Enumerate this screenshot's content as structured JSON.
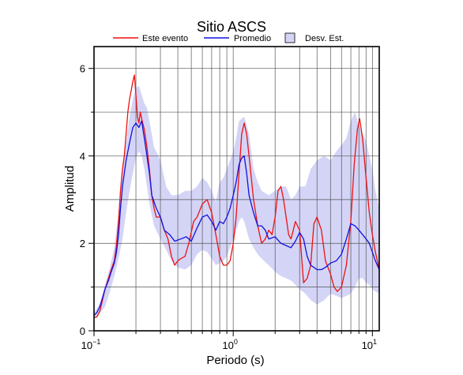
{
  "chart_data": {
    "type": "line",
    "title": "Sitio ASCS",
    "xlabel": "Periodo (s)",
    "ylabel": "Amplitud",
    "xscale": "log",
    "xlim": [
      0.1,
      11.2
    ],
    "ylim": [
      0,
      6.5
    ],
    "grid": "vertical lines at log decades and their multiples; horizontal lines at every 1 unit",
    "legend_placement": "top",
    "xticks": [
      {
        "value": 0.1,
        "base": "10",
        "exp": "−1"
      },
      {
        "value": 1,
        "base": "10",
        "exp": "0"
      },
      {
        "value": 10,
        "base": "10",
        "exp": "1"
      }
    ],
    "yticks": [
      {
        "value": 0,
        "label": "0"
      },
      {
        "value": 2,
        "label": "2"
      },
      {
        "value": 4,
        "label": "4"
      },
      {
        "value": 6,
        "label": "6"
      }
    ],
    "colors": {
      "event": "#ee1111",
      "mean": "#1111dd",
      "band": "#d4d4f7"
    },
    "legend": [
      {
        "key": "event",
        "label": "Este evento"
      },
      {
        "key": "mean",
        "label": "Promedio"
      },
      {
        "key": "band",
        "label": "Desv. Est."
      }
    ],
    "series": [
      {
        "name": "Este evento",
        "key": "event",
        "x": [
          0.1,
          0.105,
          0.11,
          0.115,
          0.12,
          0.127,
          0.133,
          0.14,
          0.145,
          0.15,
          0.155,
          0.16,
          0.165,
          0.17,
          0.175,
          0.18,
          0.185,
          0.19,
          0.195,
          0.2,
          0.205,
          0.21,
          0.215,
          0.22,
          0.23,
          0.24,
          0.25,
          0.26,
          0.27,
          0.28,
          0.3,
          0.32,
          0.34,
          0.36,
          0.38,
          0.4,
          0.42,
          0.45,
          0.48,
          0.52,
          0.55,
          0.6,
          0.65,
          0.7,
          0.75,
          0.8,
          0.85,
          0.9,
          0.95,
          1.0,
          1.05,
          1.1,
          1.15,
          1.2,
          1.25,
          1.3,
          1.4,
          1.5,
          1.6,
          1.7,
          1.8,
          1.9,
          2.0,
          2.1,
          2.2,
          2.3,
          2.4,
          2.5,
          2.6,
          2.7,
          2.8,
          3.0,
          3.2,
          3.4,
          3.6,
          3.8,
          4.0,
          4.3,
          4.6,
          5.0,
          5.3,
          5.6,
          6.0,
          6.5,
          7.0,
          7.4,
          7.8,
          8.1,
          8.5,
          9.0,
          9.5,
          10.0,
          10.5,
          11.2
        ],
        "y": [
          0.3,
          0.32,
          0.45,
          0.7,
          0.95,
          1.2,
          1.4,
          1.6,
          1.95,
          2.5,
          3.2,
          3.7,
          4.0,
          4.5,
          5.0,
          5.3,
          5.5,
          5.7,
          5.85,
          5.4,
          4.9,
          4.75,
          5.0,
          4.85,
          4.6,
          4.2,
          3.7,
          3.1,
          2.8,
          2.6,
          2.6,
          2.3,
          2.1,
          1.7,
          1.5,
          1.6,
          1.65,
          1.7,
          2.0,
          2.5,
          2.6,
          2.9,
          3.0,
          2.7,
          2.2,
          1.7,
          1.5,
          1.5,
          1.6,
          2.0,
          2.6,
          3.6,
          4.5,
          4.75,
          4.5,
          4.0,
          3.0,
          2.4,
          2.0,
          2.1,
          2.3,
          2.2,
          2.6,
          3.2,
          3.3,
          3.0,
          2.6,
          2.2,
          2.1,
          2.3,
          2.5,
          2.3,
          1.1,
          1.2,
          1.5,
          2.45,
          2.6,
          2.3,
          1.6,
          1.3,
          1.0,
          0.9,
          1.0,
          1.5,
          2.5,
          3.8,
          4.6,
          4.85,
          4.4,
          3.5,
          2.7,
          2.2,
          1.8,
          1.4
        ]
      },
      {
        "name": "Promedio",
        "key": "mean",
        "x": [
          0.1,
          0.105,
          0.11,
          0.115,
          0.12,
          0.127,
          0.133,
          0.14,
          0.145,
          0.15,
          0.155,
          0.16,
          0.165,
          0.17,
          0.175,
          0.18,
          0.19,
          0.2,
          0.21,
          0.22,
          0.23,
          0.24,
          0.25,
          0.26,
          0.28,
          0.3,
          0.32,
          0.35,
          0.38,
          0.42,
          0.46,
          0.5,
          0.55,
          0.6,
          0.65,
          0.7,
          0.75,
          0.8,
          0.85,
          0.9,
          0.95,
          1.0,
          1.05,
          1.1,
          1.15,
          1.2,
          1.25,
          1.3,
          1.4,
          1.5,
          1.6,
          1.7,
          1.8,
          2.0,
          2.2,
          2.4,
          2.6,
          2.8,
          3.0,
          3.2,
          3.4,
          3.6,
          3.8,
          4.0,
          4.3,
          4.6,
          5.0,
          5.5,
          6.0,
          6.5,
          7.0,
          7.5,
          8.0,
          8.5,
          9.0,
          9.5,
          10.0,
          10.5,
          11.2
        ],
        "y": [
          0.35,
          0.42,
          0.55,
          0.75,
          0.95,
          1.15,
          1.35,
          1.55,
          1.8,
          2.2,
          2.8,
          3.3,
          3.6,
          3.9,
          4.1,
          4.3,
          4.65,
          4.75,
          4.65,
          4.8,
          4.4,
          4.0,
          3.6,
          3.1,
          2.8,
          2.6,
          2.3,
          2.2,
          2.05,
          2.1,
          2.15,
          2.05,
          2.35,
          2.6,
          2.65,
          2.5,
          2.3,
          2.5,
          2.45,
          2.6,
          2.8,
          3.1,
          3.4,
          3.8,
          3.95,
          4.0,
          3.6,
          3.1,
          2.7,
          2.4,
          2.4,
          2.3,
          2.1,
          2.15,
          2.0,
          1.95,
          1.9,
          2.05,
          2.25,
          2.1,
          1.7,
          1.5,
          1.45,
          1.4,
          1.4,
          1.45,
          1.55,
          1.6,
          1.75,
          2.1,
          2.45,
          2.4,
          2.3,
          2.2,
          2.1,
          2.0,
          1.8,
          1.6,
          1.4
        ]
      }
    ],
    "band": {
      "name": "Desv. Est.",
      "key": "band",
      "x": [
        0.1,
        0.11,
        0.12,
        0.13,
        0.14,
        0.15,
        0.16,
        0.17,
        0.18,
        0.19,
        0.2,
        0.21,
        0.22,
        0.23,
        0.24,
        0.25,
        0.27,
        0.3,
        0.33,
        0.36,
        0.4,
        0.45,
        0.5,
        0.55,
        0.6,
        0.65,
        0.7,
        0.75,
        0.8,
        0.85,
        0.9,
        0.95,
        1.0,
        1.05,
        1.1,
        1.15,
        1.2,
        1.3,
        1.4,
        1.5,
        1.6,
        1.8,
        2.0,
        2.2,
        2.4,
        2.6,
        2.8,
        3.0,
        3.3,
        3.6,
        4.0,
        4.5,
        5.0,
        5.5,
        6.0,
        6.5,
        7.0,
        7.5,
        8.0,
        8.5,
        9.0,
        9.5,
        10.0,
        10.5,
        11.2
      ],
      "upper": [
        0.4,
        0.62,
        1.05,
        1.45,
        1.9,
        2.7,
        3.6,
        4.3,
        4.9,
        5.3,
        5.55,
        5.6,
        5.4,
        5.2,
        5.1,
        4.8,
        4.2,
        3.9,
        3.3,
        3.1,
        3.1,
        3.2,
        3.2,
        3.3,
        3.5,
        3.4,
        3.2,
        2.95,
        3.4,
        3.5,
        3.7,
        3.9,
        4.1,
        4.4,
        4.8,
        4.85,
        4.9,
        4.5,
        3.7,
        3.4,
        3.2,
        3.1,
        3.2,
        3.3,
        3.3,
        3.0,
        3.1,
        3.3,
        3.3,
        3.7,
        3.9,
        4.0,
        3.9,
        4.1,
        4.25,
        4.4,
        4.8,
        5.0,
        4.7,
        4.5,
        4.35,
        4.0,
        3.7,
        3.2,
        2.8
      ],
      "lower": [
        0.3,
        0.4,
        0.55,
        0.9,
        1.25,
        1.65,
        2.1,
        2.7,
        3.2,
        3.6,
        3.95,
        4.1,
        4.0,
        3.7,
        3.3,
        2.9,
        2.4,
        2.1,
        1.85,
        1.6,
        1.45,
        1.4,
        1.5,
        1.75,
        1.85,
        1.8,
        1.65,
        1.5,
        1.55,
        1.6,
        1.7,
        1.9,
        2.1,
        2.3,
        2.5,
        2.6,
        2.5,
        2.1,
        1.9,
        1.75,
        1.65,
        1.5,
        1.35,
        1.25,
        1.2,
        1.15,
        1.05,
        0.95,
        0.85,
        0.7,
        0.6,
        0.7,
        0.85,
        0.8,
        0.75,
        0.8,
        0.85,
        1.0,
        1.2,
        1.2,
        1.1,
        1.05,
        0.95,
        0.9,
        0.85
      ]
    }
  }
}
